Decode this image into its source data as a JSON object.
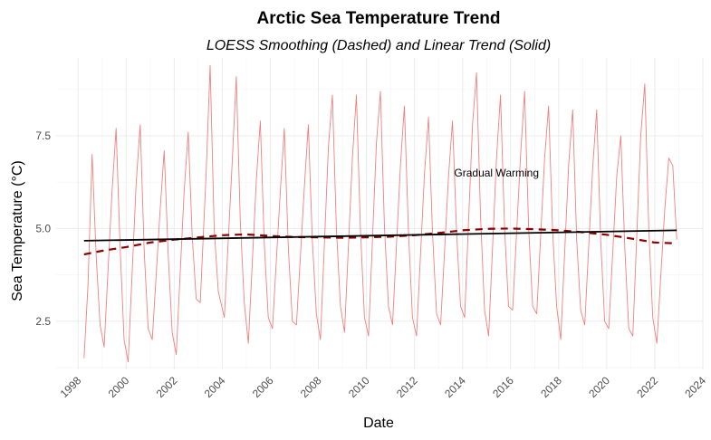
{
  "chart_data": {
    "type": "line",
    "title": "Arctic Sea Temperature Trend",
    "subtitle": "LOESS Smoothing (Dashed) and Linear Trend (Solid)",
    "xlabel": "Date",
    "ylabel": "Sea Temperature (°C)",
    "xlim": [
      "1997-02-01",
      "2024-01-01"
    ],
    "ylim": [
      1.2,
      9.6
    ],
    "x_ticks": [
      "1998",
      "2000",
      "2002",
      "2004",
      "2006",
      "2008",
      "2010",
      "2012",
      "2014",
      "2016",
      "2018",
      "2020",
      "2022",
      "2024"
    ],
    "y_ticks": [
      "2.5",
      "5.0",
      "7.5"
    ],
    "grid": true,
    "annotation": {
      "text": "Gradual Warming",
      "x": "2015-06-01",
      "y": 6.4
    },
    "colors": {
      "raw": "#f08080",
      "loess": "#8b0000",
      "linear": "#000000"
    },
    "series": [
      {
        "style": "raw",
        "x": [
          "1998-04-01",
          "1998-06-01",
          "1998-08-01",
          "1998-10-01",
          "1998-12-01",
          "1999-02-01",
          "1999-06-01",
          "1999-08-01",
          "1999-10-01",
          "1999-12-01",
          "2000-02-01",
          "2000-06-01",
          "2000-08-01",
          "2000-10-01",
          "2000-12-01",
          "2001-02-01",
          "2001-06-01",
          "2001-08-01",
          "2001-10-01",
          "2001-12-01",
          "2002-02-01",
          "2002-06-01",
          "2002-08-01",
          "2002-10-01",
          "2002-12-01",
          "2003-02-01",
          "2003-05-01",
          "2003-07-01",
          "2003-09-01",
          "2003-11-01",
          "2004-02-01",
          "2004-06-01",
          "2004-08-01",
          "2004-10-01",
          "2004-12-01",
          "2005-02-01",
          "2005-06-01",
          "2005-08-01",
          "2005-10-01",
          "2005-12-01",
          "2006-02-01",
          "2006-06-01",
          "2006-08-01",
          "2006-10-01",
          "2006-12-01",
          "2007-02-01",
          "2007-06-01",
          "2007-08-01",
          "2007-10-01",
          "2007-12-01",
          "2008-02-01",
          "2008-06-01",
          "2008-08-01",
          "2008-10-01",
          "2008-12-01",
          "2009-02-01",
          "2009-06-01",
          "2009-08-01",
          "2009-10-01",
          "2009-12-01",
          "2010-02-01",
          "2010-06-01",
          "2010-08-01",
          "2010-10-01",
          "2010-12-01",
          "2011-02-01",
          "2011-06-01",
          "2011-08-01",
          "2011-10-01",
          "2011-12-01",
          "2012-02-01",
          "2012-06-01",
          "2012-08-01",
          "2012-10-01",
          "2012-12-01",
          "2013-02-01",
          "2013-06-01",
          "2013-08-01",
          "2013-10-01",
          "2013-12-01",
          "2014-02-01",
          "2014-06-01",
          "2014-08-01",
          "2014-10-01",
          "2014-12-01",
          "2015-02-01",
          "2015-06-01",
          "2015-08-01",
          "2015-10-01",
          "2015-12-01",
          "2016-02-01",
          "2016-06-01",
          "2016-08-01",
          "2016-10-01",
          "2016-12-01",
          "2017-02-01",
          "2017-06-01",
          "2017-08-01",
          "2017-10-01",
          "2017-12-01",
          "2018-02-01",
          "2018-06-01",
          "2018-08-01",
          "2018-10-01",
          "2018-12-01",
          "2019-02-01",
          "2019-06-01",
          "2019-08-01",
          "2019-10-01",
          "2019-12-01",
          "2020-02-01",
          "2020-06-01",
          "2020-08-01",
          "2020-10-01",
          "2020-12-01",
          "2021-02-01",
          "2021-06-01",
          "2021-08-01",
          "2021-10-01",
          "2021-12-01",
          "2022-02-01",
          "2022-06-01",
          "2022-08-01",
          "2022-10-01",
          "2022-12-01"
        ],
        "values": [
          1.5,
          3.5,
          7.0,
          4.3,
          2.4,
          1.8,
          6.0,
          7.7,
          4.5,
          2.0,
          1.4,
          6.2,
          7.8,
          4.4,
          2.3,
          2.0,
          5.5,
          7.1,
          4.3,
          2.2,
          1.6,
          6.0,
          7.6,
          4.8,
          3.1,
          3.0,
          6.5,
          9.4,
          5.0,
          3.3,
          2.6,
          6.8,
          9.1,
          5.2,
          3.0,
          1.9,
          6.3,
          7.9,
          4.6,
          2.6,
          2.3,
          6.0,
          7.7,
          4.5,
          2.5,
          2.4,
          6.1,
          7.8,
          4.7,
          2.7,
          2.0,
          7.2,
          8.6,
          5.0,
          2.9,
          2.2,
          6.9,
          8.6,
          5.0,
          2.6,
          2.1,
          7.3,
          8.7,
          5.1,
          2.9,
          2.4,
          6.7,
          8.3,
          4.9,
          2.6,
          2.1,
          6.5,
          8.0,
          4.9,
          2.7,
          2.4,
          6.4,
          7.9,
          4.9,
          2.9,
          2.6,
          7.8,
          9.2,
          5.3,
          2.8,
          2.1,
          6.9,
          8.6,
          5.0,
          2.9,
          2.8,
          7.0,
          8.7,
          5.0,
          2.9,
          2.7,
          6.9,
          8.3,
          4.9,
          2.9,
          2.0,
          6.7,
          8.2,
          4.7,
          2.8,
          2.4,
          6.6,
          8.2,
          4.7,
          2.5,
          2.3,
          6.4,
          7.5,
          4.5,
          2.3,
          2.1,
          7.5,
          8.9,
          5.0,
          2.6,
          1.9,
          5.5,
          6.9,
          6.7,
          4.7
        ]
      },
      {
        "style": "loess",
        "x": [
          "1998-04-01",
          "1999-01-01",
          "2000-01-01",
          "2001-01-01",
          "2002-01-01",
          "2003-01-01",
          "2004-01-01",
          "2005-01-01",
          "2006-01-01",
          "2007-01-01",
          "2008-01-01",
          "2009-01-01",
          "2010-01-01",
          "2011-01-01",
          "2012-01-01",
          "2013-01-01",
          "2014-01-01",
          "2015-01-01",
          "2016-01-01",
          "2017-01-01",
          "2018-01-01",
          "2019-01-01",
          "2020-01-01",
          "2021-01-01",
          "2022-01-01",
          "2022-12-01"
        ],
        "values": [
          4.3,
          4.4,
          4.5,
          4.62,
          4.7,
          4.76,
          4.82,
          4.84,
          4.8,
          4.77,
          4.76,
          4.75,
          4.76,
          4.78,
          4.82,
          4.88,
          4.95,
          4.99,
          5.0,
          4.98,
          4.95,
          4.9,
          4.83,
          4.73,
          4.62,
          4.6
        ]
      },
      {
        "style": "linear",
        "x": [
          "1998-04-01",
          "2022-12-01"
        ],
        "values": [
          4.67,
          4.95
        ]
      }
    ]
  }
}
